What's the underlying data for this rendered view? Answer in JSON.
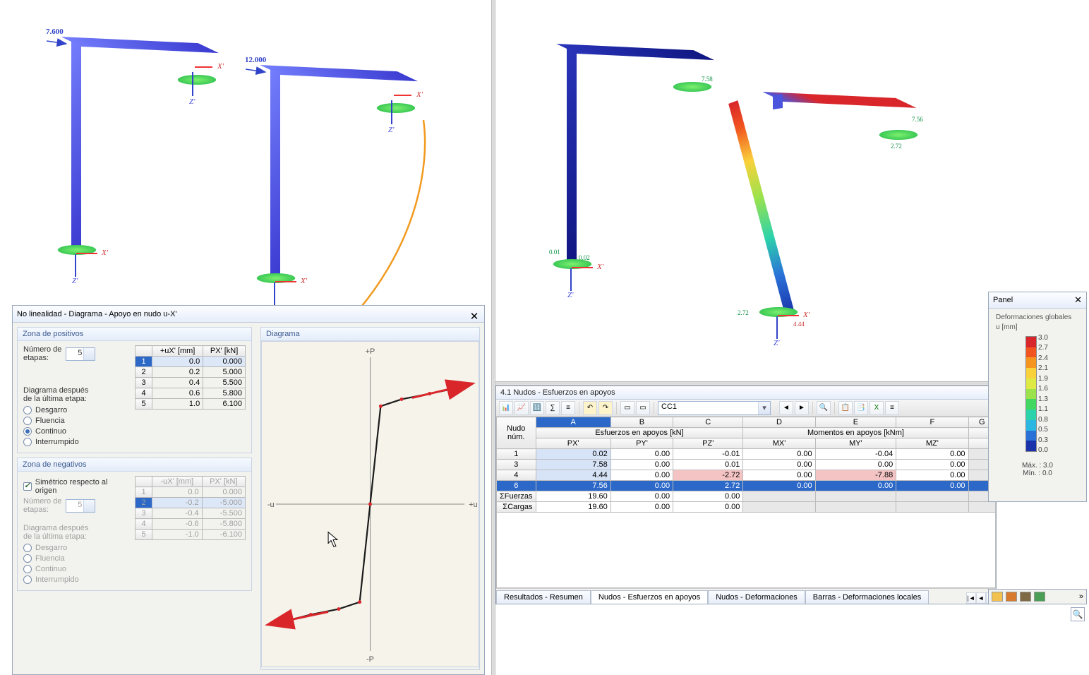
{
  "models": {
    "left": [
      {
        "load": "7.600",
        "axisZ": "Z'",
        "axisX": "X'"
      },
      {
        "load": "12.000",
        "axisZ": "Z'",
        "axisX": "X'"
      }
    ],
    "right": [
      {
        "axisZ": "Z'",
        "axisX": "X'",
        "ann1": "0.01",
        "ann2": "0.02",
        "ann3": "7.58"
      },
      {
        "axisZ": "Z'",
        "axisX": "X'",
        "ann1": "2.72",
        "ann2": "4.44",
        "ann3": "7.56"
      }
    ]
  },
  "dialog": {
    "title": "No linealidad - Diagrama - Apoyo en nudo u-X'",
    "zonaPos": "Zona de positivos",
    "zonaNeg": "Zona de negativos",
    "numEtapasLbl": "Número de\netapas:",
    "numEtapasVal": "5",
    "diagUltLbl": "Diagrama después\nde la última etapa:",
    "rDesgarro": "Desgarro",
    "rFluencia": "Fluencia",
    "rContinuo": "Continuo",
    "rInterrumpido": "Interrumpido",
    "simCheck": "Simétrico respecto al origen",
    "diagramaHdr": "Diagrama",
    "colU": "+uX' [mm]",
    "colP": "PX' [kN]",
    "colUn": "-uX' [mm]",
    "tablePos": [
      [
        "1",
        "0.0",
        "0.000"
      ],
      [
        "2",
        "0.2",
        "5.000"
      ],
      [
        "3",
        "0.4",
        "5.500"
      ],
      [
        "4",
        "0.6",
        "5.800"
      ],
      [
        "5",
        "1.0",
        "6.100"
      ]
    ],
    "tableNeg": [
      [
        "1",
        "0.0",
        "0.000"
      ],
      [
        "2",
        "-0.2",
        "-5.000"
      ],
      [
        "3",
        "-0.4",
        "-5.500"
      ],
      [
        "4",
        "-0.6",
        "-5.800"
      ],
      [
        "5",
        "-1.0",
        "-6.100"
      ]
    ],
    "chart": {
      "axPX": "+PX'",
      "axMX": "-PX'",
      "axPU": "+uX'",
      "axMU": "-uX'",
      "lineColor": "#1a1a1a",
      "arrowColor": "#d9262b"
    }
  },
  "results": {
    "title": "4.1 Nudos - Esfuerzos en apoyos",
    "combo": "CC1",
    "hdrGrpA": "A",
    "hdrGrpB": "B",
    "hdrGrpC": "C",
    "hdrGrpD": "D",
    "hdrGrpE": "E",
    "hdrGrpF": "F",
    "hdrGrpG": "G",
    "hdrNudo": "Nudo\nnúm.",
    "hdrEsf": "Esfuerzos en apoyos [kN]",
    "hdrMom": "Momentos en apoyos [kNm]",
    "cPX": "PX'",
    "cPY": "PY'",
    "cPZ": "PZ'",
    "cMX": "MX'",
    "cMY": "MY'",
    "cMZ": "MZ'",
    "rows": [
      {
        "n": "1",
        "px": "0.02",
        "py": "0.00",
        "pz": "-0.01",
        "mx": "0.00",
        "my": "-0.04",
        "mz": "0.00"
      },
      {
        "n": "3",
        "px": "7.58",
        "py": "0.00",
        "pz": "0.01",
        "mx": "0.00",
        "my": "0.00",
        "mz": "0.00"
      },
      {
        "n": "4",
        "px": "4.44",
        "py": "0.00",
        "pz": "-2.72",
        "mx": "0.00",
        "my": "-7.88",
        "mz": "0.00",
        "neg": [
          "pz",
          "my"
        ]
      },
      {
        "n": "6",
        "px": "7.56",
        "py": "0.00",
        "pz": "2.72",
        "mx": "0.00",
        "my": "0.00",
        "mz": "0.00",
        "sel": true
      }
    ],
    "sumF": {
      "lbl": "ΣFuerzas",
      "px": "19.60",
      "py": "0.00",
      "pz": "0.00"
    },
    "sumC": {
      "lbl": "ΣCargas",
      "px": "19.60",
      "py": "0.00",
      "pz": "0.00"
    },
    "tabs": [
      "Resultados - Resumen",
      "Nudos - Esfuerzos en apoyos",
      "Nudos - Deformaciones",
      "Barras - Deformaciones locales"
    ]
  },
  "panel": {
    "title": "Panel",
    "label": "Deformaciones globales",
    "unit": "u [mm]",
    "max": "Máx. : 3.0",
    "min": "Mín. : 0.0",
    "colors": [
      "#d9262b",
      "#f1541f",
      "#f59520",
      "#f9d13a",
      "#dfe943",
      "#9be24c",
      "#42d760",
      "#2cd3aa",
      "#2cb7e2",
      "#2a72d8",
      "#1a33aa"
    ],
    "ticks": [
      "3.0",
      "2.7",
      "2.4",
      "2.1",
      "1.9",
      "1.6",
      "1.3",
      "1.1",
      "0.8",
      "0.5",
      "0.3",
      "0.0"
    ]
  }
}
